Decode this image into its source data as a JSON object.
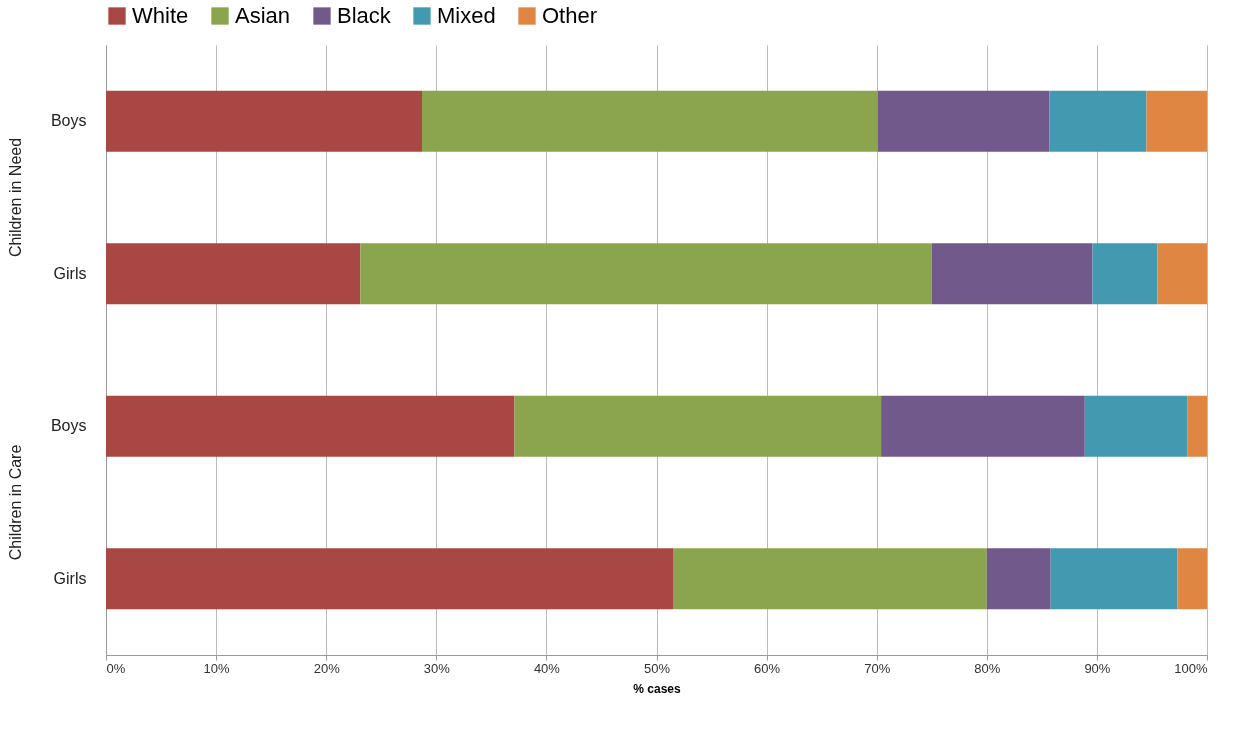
{
  "chart_data": {
    "type": "bar",
    "orientation": "horizontal",
    "stacked": true,
    "categories": [
      "Boys",
      "Girls",
      "Boys",
      "Girls"
    ],
    "series": [
      {
        "name": "White",
        "color": "#a94744",
        "values": [
          28.7,
          23.1,
          37.1,
          51.5
        ]
      },
      {
        "name": "Asian",
        "color": "#8aa54e",
        "values": [
          41.4,
          51.9,
          33.3,
          28.5
        ]
      },
      {
        "name": "Black",
        "color": "#71598c",
        "values": [
          15.6,
          14.6,
          18.5,
          5.8
        ]
      },
      {
        "name": "Mixed",
        "color": "#4399b0",
        "values": [
          8.8,
          5.9,
          9.3,
          11.5
        ]
      },
      {
        "name": "Other",
        "color": "#de8642",
        "values": [
          5.5,
          4.5,
          1.8,
          2.7
        ]
      }
    ],
    "xlim": [
      0,
      100
    ],
    "xticks": [
      {
        "value": 0,
        "label": "0%"
      },
      {
        "value": 10,
        "label": "10%"
      },
      {
        "value": 20,
        "label": "20%"
      },
      {
        "value": 30,
        "label": "30%"
      },
      {
        "value": 40,
        "label": "40%"
      },
      {
        "value": 50,
        "label": "50%"
      },
      {
        "value": 60,
        "label": "60%"
      },
      {
        "value": 70,
        "label": "70%"
      },
      {
        "value": 80,
        "label": "80%"
      },
      {
        "value": 90,
        "label": "90%"
      },
      {
        "value": 100,
        "label": "100%"
      }
    ],
    "xlabel": "% cases",
    "annotations": [
      "Children in Need",
      "Children in Care"
    ],
    "grid": "x",
    "legend": "top"
  }
}
